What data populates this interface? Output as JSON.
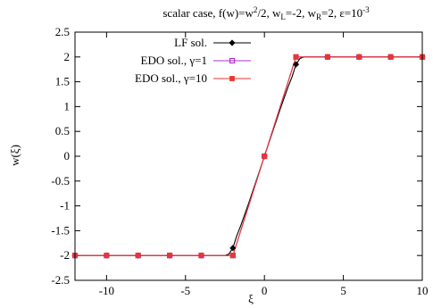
{
  "chart_data": {
    "type": "line",
    "title": {
      "pre": "scalar case, f(w)=w",
      "sup1": "2",
      "mid1": "/2, w",
      "sub1": "L",
      "mid2": "=-2, w",
      "sub2": "R",
      "mid3": "=2, ε=10",
      "sup2": "-3"
    },
    "xlabel": "ξ",
    "ylabel": "w(ξ)",
    "xlim": [
      -12,
      10
    ],
    "ylim": [
      -2.5,
      2.5
    ],
    "x_ticks": [
      {
        "v": -10,
        "label": "-10"
      },
      {
        "v": -5,
        "label": "-5"
      },
      {
        "v": 0,
        "label": "0"
      },
      {
        "v": 5,
        "label": "5"
      },
      {
        "v": 10,
        "label": "10"
      }
    ],
    "y_ticks": [
      {
        "v": -2.5,
        "label": "-2.5"
      },
      {
        "v": -2,
        "label": "-2"
      },
      {
        "v": -1.5,
        "label": "-1.5"
      },
      {
        "v": -1,
        "label": "-1"
      },
      {
        "v": -0.5,
        "label": "-0.5"
      },
      {
        "v": 0,
        "label": "0"
      },
      {
        "v": 0.5,
        "label": "0.5"
      },
      {
        "v": 1,
        "label": "1"
      },
      {
        "v": 1.5,
        "label": "1.5"
      },
      {
        "v": 2,
        "label": "2"
      },
      {
        "v": 2.5,
        "label": "2.5"
      }
    ],
    "grid": false,
    "legend_position": "top-left",
    "series": [
      {
        "name": "LF sol.",
        "color": "#000000",
        "marker": "diamond",
        "x": [
          -12,
          -2.5,
          -2.25,
          -2,
          -1.75,
          -1.5,
          -1,
          0,
          1,
          1.5,
          1.75,
          2,
          2.25,
          2.5,
          10
        ],
        "y": [
          -2,
          -2,
          -1.97,
          -1.85,
          -1.6,
          -1.4,
          -0.95,
          0,
          0.95,
          1.4,
          1.6,
          1.85,
          1.97,
          2,
          2
        ],
        "marker_x": [
          -12,
          -10,
          -8,
          -6,
          -4,
          -2,
          0,
          2,
          4,
          6,
          8,
          10
        ],
        "marker_y": [
          -2,
          -2,
          -2,
          -2,
          -2,
          -1.85,
          0,
          1.85,
          2,
          2,
          2,
          2
        ]
      },
      {
        "name": "EDO sol., γ=1",
        "color": "#aa33cc",
        "marker": "square",
        "x": [
          -12,
          -2,
          0,
          2,
          10
        ],
        "y": [
          -2,
          -2,
          0,
          2,
          2
        ],
        "marker_x": [
          -12,
          -10,
          -8,
          -6,
          -4,
          -2,
          0,
          2,
          4,
          6,
          8,
          10
        ],
        "marker_y": [
          -2,
          -2,
          -2,
          -2,
          -2,
          -2,
          0,
          2,
          2,
          2,
          2,
          2
        ]
      },
      {
        "name": "EDO sol., γ=10",
        "color": "#e8362f",
        "marker": "filled-square",
        "x": [
          -12,
          -2,
          0,
          2,
          10
        ],
        "y": [
          -2,
          -2,
          0,
          2,
          2
        ],
        "marker_x": [
          -12,
          -10,
          -8,
          -6,
          -4,
          -2,
          0,
          2,
          4,
          6,
          8,
          10
        ],
        "marker_y": [
          -2,
          -2,
          -2,
          -2,
          -2,
          -2,
          0,
          2,
          2,
          2,
          2,
          2
        ]
      }
    ]
  }
}
